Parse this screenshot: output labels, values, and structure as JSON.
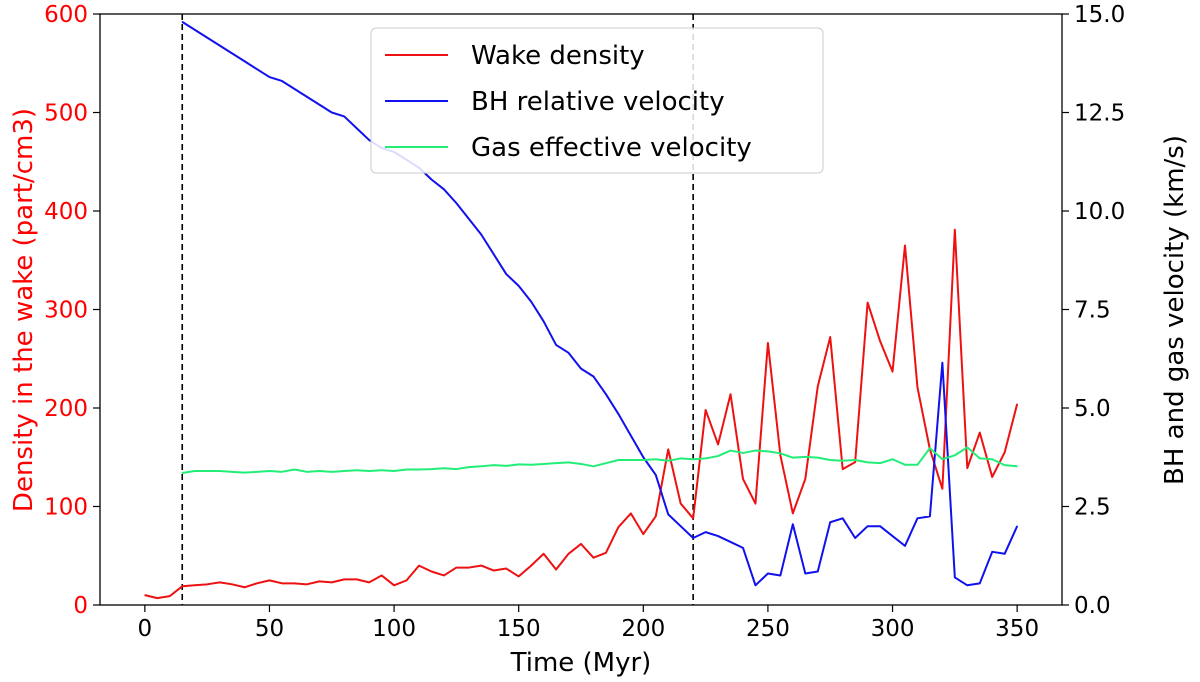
{
  "chart_data": {
    "type": "line",
    "xlabel": "Time (Myr)",
    "ylabel_left": "Density in the wake (part/cm3)",
    "ylabel_right": "BH and gas velocity (km/s)",
    "xlim": [
      -18,
      368
    ],
    "ylim_left": [
      0,
      600
    ],
    "ylim_right": [
      0,
      15
    ],
    "x_ticks": [
      0,
      50,
      100,
      150,
      200,
      250,
      300,
      350
    ],
    "x_tick_labels": [
      "0",
      "50",
      "100",
      "150",
      "200",
      "250",
      "300",
      "350"
    ],
    "y_left_ticks": [
      0,
      100,
      200,
      300,
      400,
      500,
      600
    ],
    "y_left_tick_labels": [
      "0",
      "100",
      "200",
      "300",
      "400",
      "500",
      "600"
    ],
    "y_right_ticks": [
      0,
      2.5,
      5,
      7.5,
      10,
      12.5,
      15
    ],
    "y_right_tick_labels": [
      "0.0",
      "2.5",
      "5.0",
      "7.5",
      "10.0",
      "12.5",
      "15.0"
    ],
    "vlines": [
      15,
      220
    ],
    "legend_position": "upper center",
    "colors": {
      "left_axis": "#ff0000",
      "right_axis": "#000000"
    },
    "series": [
      {
        "name": "Wake density",
        "axis": "left",
        "color": "#ee1111",
        "x": [
          0,
          5,
          10,
          15,
          20,
          25,
          30,
          35,
          40,
          45,
          50,
          55,
          60,
          65,
          70,
          75,
          80,
          85,
          90,
          95,
          100,
          105,
          110,
          115,
          120,
          125,
          130,
          135,
          140,
          145,
          150,
          155,
          160,
          165,
          170,
          175,
          180,
          185,
          190,
          195,
          200,
          205,
          210,
          215,
          220,
          225,
          230,
          235,
          240,
          245,
          250,
          255,
          260,
          265,
          270,
          275,
          280,
          285,
          290,
          295,
          300,
          305,
          310,
          315,
          320,
          325,
          330,
          335,
          340,
          345,
          350
        ],
        "y": [
          10,
          7,
          9,
          19,
          20,
          21,
          23,
          21,
          18,
          22,
          25,
          22,
          22,
          21,
          24,
          23,
          26,
          26,
          23,
          30,
          20,
          25,
          40,
          34,
          30,
          38,
          38,
          40,
          35,
          37,
          29,
          40,
          52,
          36,
          52,
          62,
          48,
          53,
          79,
          93,
          72,
          90,
          158,
          103,
          88,
          198,
          163,
          214,
          128,
          103,
          266,
          152,
          93,
          128,
          222,
          272,
          138,
          145,
          307,
          268,
          237,
          365,
          221,
          158,
          118,
          381,
          139,
          175,
          130,
          155,
          204
        ]
      },
      {
        "name": "BH relative velocity",
        "axis": "right",
        "color": "#1111ee",
        "x": [
          15,
          20,
          25,
          30,
          35,
          40,
          45,
          50,
          55,
          60,
          65,
          70,
          75,
          80,
          85,
          90,
          95,
          100,
          105,
          110,
          115,
          120,
          125,
          130,
          135,
          140,
          145,
          150,
          155,
          160,
          165,
          170,
          175,
          180,
          185,
          190,
          195,
          200,
          205,
          210,
          215,
          220,
          225,
          230,
          235,
          240,
          245,
          250,
          255,
          260,
          265,
          270,
          275,
          280,
          285,
          290,
          295,
          300,
          305,
          310,
          315,
          320,
          325,
          330,
          335,
          340,
          345,
          350
        ],
        "y": [
          14.8,
          14.6,
          14.4,
          14.2,
          14.0,
          13.8,
          13.6,
          13.4,
          13.3,
          13.1,
          12.9,
          12.7,
          12.5,
          12.4,
          12.1,
          11.8,
          11.6,
          11.5,
          11.3,
          11.1,
          10.8,
          10.55,
          10.2,
          9.8,
          9.4,
          8.9,
          8.4,
          8.1,
          7.7,
          7.2,
          6.6,
          6.4,
          6.0,
          5.8,
          5.35,
          4.85,
          4.3,
          3.75,
          3.3,
          2.3,
          2.0,
          1.7,
          1.85,
          1.75,
          1.6,
          1.45,
          0.5,
          0.8,
          0.75,
          2.05,
          0.8,
          0.85,
          2.1,
          2.2,
          1.7,
          2.0,
          2.0,
          1.75,
          1.5,
          2.2,
          2.25,
          6.15,
          0.7,
          0.5,
          0.55,
          1.35,
          1.3,
          2.0
        ]
      },
      {
        "name": "Gas effective velocity",
        "axis": "right",
        "color": "#22ee77",
        "x": [
          15,
          20,
          25,
          30,
          35,
          40,
          45,
          50,
          55,
          60,
          65,
          70,
          75,
          80,
          85,
          90,
          95,
          100,
          105,
          110,
          115,
          120,
          125,
          130,
          135,
          140,
          145,
          150,
          155,
          160,
          165,
          170,
          175,
          180,
          185,
          190,
          195,
          200,
          205,
          210,
          215,
          220,
          225,
          230,
          235,
          240,
          245,
          250,
          255,
          260,
          265,
          270,
          275,
          280,
          285,
          290,
          295,
          300,
          305,
          310,
          315,
          320,
          325,
          330,
          335,
          340,
          345,
          350
        ],
        "y": [
          3.35,
          3.4,
          3.4,
          3.4,
          3.38,
          3.36,
          3.38,
          3.4,
          3.38,
          3.44,
          3.38,
          3.4,
          3.38,
          3.4,
          3.42,
          3.4,
          3.42,
          3.4,
          3.44,
          3.44,
          3.45,
          3.47,
          3.45,
          3.5,
          3.52,
          3.55,
          3.53,
          3.57,
          3.56,
          3.58,
          3.6,
          3.62,
          3.58,
          3.52,
          3.6,
          3.68,
          3.68,
          3.68,
          3.7,
          3.66,
          3.72,
          3.7,
          3.72,
          3.78,
          3.92,
          3.86,
          3.92,
          3.9,
          3.85,
          3.74,
          3.76,
          3.74,
          3.68,
          3.66,
          3.68,
          3.62,
          3.6,
          3.7,
          3.56,
          3.56,
          3.98,
          3.7,
          3.8,
          4.0,
          3.72,
          3.7,
          3.55,
          3.52
        ]
      }
    ]
  }
}
